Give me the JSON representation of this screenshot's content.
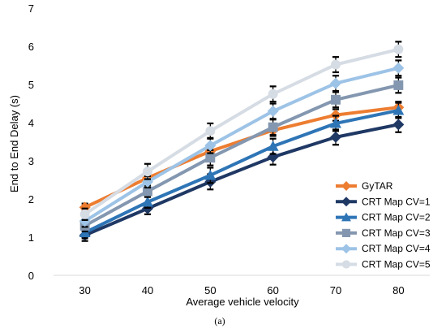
{
  "chart_data": {
    "type": "line",
    "title": "",
    "xlabel": "Average vehicle velocity",
    "ylabel": "End to End Delay (s)",
    "x": [
      30,
      40,
      50,
      60,
      70,
      80
    ],
    "ylim": [
      0,
      7
    ],
    "yticks": [
      0,
      1,
      2,
      3,
      4,
      5,
      6,
      7
    ],
    "grid": false,
    "legend_position": "bottom-right",
    "caption": "(a)",
    "series": [
      {
        "name": "GyTAR",
        "color": "#ED7D31",
        "marker": "diamond",
        "values": [
          1.78,
          2.55,
          3.25,
          3.8,
          4.2,
          4.4
        ],
        "error": [
          0.1,
          0.12,
          0.15,
          0.15,
          0.15,
          0.15
        ]
      },
      {
        "name": "CRT Map CV=1",
        "color": "#1F3864",
        "marker": "diamond",
        "values": [
          1.05,
          1.75,
          2.45,
          3.1,
          3.62,
          3.95
        ],
        "error": [
          0.15,
          0.15,
          0.2,
          0.2,
          0.2,
          0.2
        ]
      },
      {
        "name": "CRT Map CV=2",
        "color": "#2E75B6",
        "marker": "triangle",
        "values": [
          1.12,
          1.92,
          2.62,
          3.38,
          3.98,
          4.32
        ],
        "error": [
          0.15,
          0.15,
          0.2,
          0.2,
          0.2,
          0.2
        ]
      },
      {
        "name": "CRT Map CV=3",
        "color": "#8497B0",
        "marker": "square",
        "values": [
          1.3,
          2.2,
          3.08,
          3.88,
          4.6,
          4.98
        ],
        "error": [
          0.15,
          0.15,
          0.2,
          0.2,
          0.2,
          0.2
        ]
      },
      {
        "name": "CRT Map CV=4",
        "color": "#9DC3E6",
        "marker": "diamond",
        "values": [
          1.42,
          2.45,
          3.4,
          4.3,
          5.03,
          5.43
        ],
        "error": [
          0.15,
          0.15,
          0.2,
          0.2,
          0.2,
          0.2
        ]
      },
      {
        "name": "CRT Map CV=5",
        "color": "#D6DCE4",
        "marker": "circle",
        "values": [
          1.6,
          2.72,
          3.78,
          4.75,
          5.52,
          5.92
        ],
        "error": [
          0.15,
          0.2,
          0.2,
          0.2,
          0.2,
          0.2
        ]
      }
    ]
  }
}
